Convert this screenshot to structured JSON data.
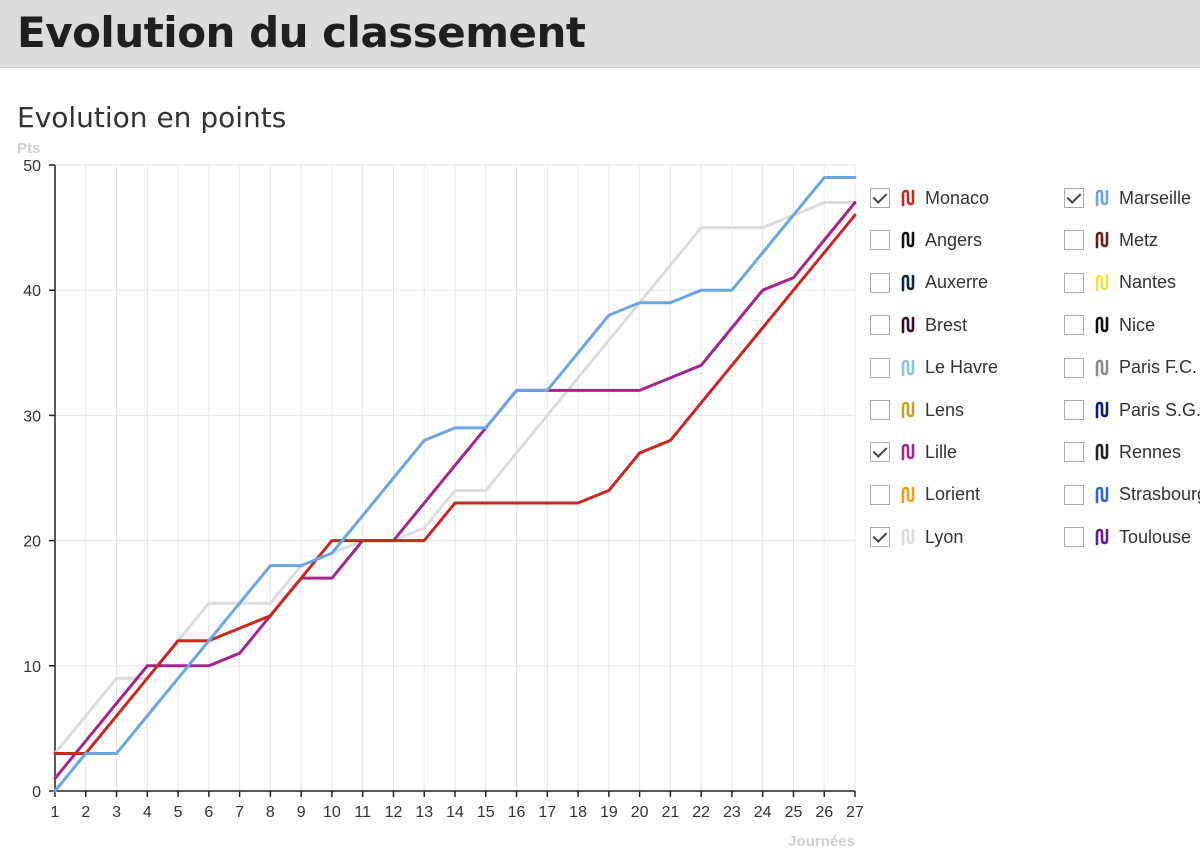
{
  "header": {
    "title": "Evolution du classement"
  },
  "chart_data": {
    "type": "line",
    "title": "Evolution en points",
    "ylabel": "Pts",
    "xlabel": "Journées",
    "ylim": [
      0,
      50
    ],
    "yticks": [
      0,
      10,
      20,
      30,
      40,
      50
    ],
    "x": [
      1,
      2,
      3,
      4,
      5,
      6,
      7,
      8,
      9,
      10,
      11,
      12,
      13,
      14,
      15,
      16,
      17,
      18,
      19,
      20,
      21,
      22,
      23,
      24,
      25,
      26,
      27
    ],
    "grid": true,
    "series": [
      {
        "name": "Lyon",
        "color": "#dcdcdc",
        "values": [
          3,
          6,
          9,
          9,
          12,
          15,
          15,
          15,
          18,
          19,
          20,
          20,
          21,
          24,
          24,
          27,
          30,
          33,
          36,
          39,
          42,
          45,
          45,
          45,
          46,
          47,
          47
        ]
      },
      {
        "name": "Lille",
        "color": "#a3268c",
        "values": [
          1,
          4,
          7,
          10,
          10,
          10,
          11,
          14,
          17,
          17,
          20,
          20,
          23,
          26,
          29,
          32,
          32,
          32,
          32,
          32,
          33,
          34,
          37,
          40,
          41,
          44,
          47
        ]
      },
      {
        "name": "Monaco",
        "color": "#c8281e",
        "values": [
          3,
          3,
          6,
          9,
          12,
          12,
          13,
          14,
          17,
          20,
          20,
          20,
          20,
          23,
          23,
          23,
          23,
          23,
          24,
          27,
          28,
          31,
          34,
          37,
          40,
          43,
          46
        ]
      },
      {
        "name": "Marseille",
        "color": "#6aa6e2",
        "values": [
          0,
          3,
          3,
          6,
          9,
          12,
          15,
          18,
          18,
          19,
          22,
          25,
          28,
          29,
          29,
          32,
          32,
          35,
          38,
          39,
          39,
          40,
          40,
          43,
          46,
          49,
          49
        ]
      }
    ]
  },
  "legend": {
    "left": [
      {
        "name": "Monaco",
        "color": "#c8281e",
        "checked": true
      },
      {
        "name": "Angers",
        "color": "#111111",
        "checked": false
      },
      {
        "name": "Auxerre",
        "color": "#0e2a3a",
        "checked": false
      },
      {
        "name": "Brest",
        "color": "#3b0a2a",
        "checked": false
      },
      {
        "name": "Le Havre",
        "color": "#8cc5e0",
        "checked": false
      },
      {
        "name": "Lens",
        "color": "#c9a227",
        "checked": false
      },
      {
        "name": "Lille",
        "color": "#a3268c",
        "checked": true
      },
      {
        "name": "Lorient",
        "color": "#f0a020",
        "checked": false
      },
      {
        "name": "Lyon",
        "color": "#dcdcdc",
        "checked": true
      }
    ],
    "right": [
      {
        "name": "Marseille",
        "color": "#6aa6e2",
        "checked": true
      },
      {
        "name": "Metz",
        "color": "#6b1e14",
        "checked": false
      },
      {
        "name": "Nantes",
        "color": "#e8e23a",
        "checked": false
      },
      {
        "name": "Nice",
        "color": "#111111",
        "checked": false
      },
      {
        "name": "Paris F.C.",
        "color": "#8a8a8a",
        "checked": false
      },
      {
        "name": "Paris S.G.",
        "color": "#0a1a7a",
        "checked": false
      },
      {
        "name": "Rennes",
        "color": "#222222",
        "checked": false
      },
      {
        "name": "Strasbourg",
        "color": "#2a6ad0",
        "checked": false
      },
      {
        "name": "Toulouse",
        "color": "#6a1a8a",
        "checked": false
      }
    ]
  }
}
